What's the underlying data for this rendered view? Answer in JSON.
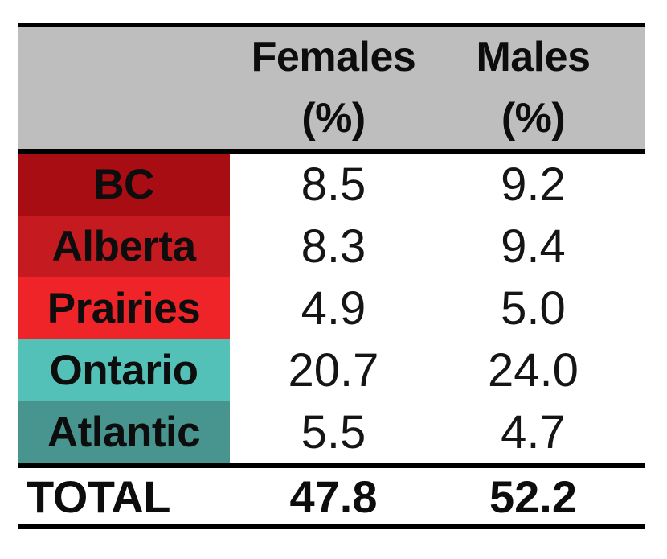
{
  "colors": {
    "header_bg": "#bfbebe",
    "rule": "#000000",
    "bc_red": "#a80d13",
    "alberta_red": "#c51a20",
    "prairies_red": "#ee2428",
    "ontario_teal": "#53c1b7",
    "atlantic_teal": "#48948e"
  },
  "header": {
    "females": {
      "title": "Females",
      "unit": "(%)"
    },
    "males": {
      "title": "Males",
      "unit": "(%)"
    }
  },
  "rows": [
    {
      "label": "BC",
      "females": "8.5",
      "males": "9.2",
      "color": "#a80d13"
    },
    {
      "label": "Alberta",
      "females": "8.3",
      "males": "9.4",
      "color": "#c51a20"
    },
    {
      "label": "Prairies",
      "females": "4.9",
      "males": "5.0",
      "color": "#ee2428"
    },
    {
      "label": "Ontario",
      "females": "20.7",
      "males": "24.0",
      "color": "#53c1b7"
    },
    {
      "label": "Atlantic",
      "females": "5.5",
      "males": "4.7",
      "color": "#48948e"
    }
  ],
  "total": {
    "label": "TOTAL",
    "females": "47.8",
    "males": "52.2"
  },
  "chart_data": {
    "type": "table",
    "columns": [
      "",
      "Females (%)",
      "Males (%)"
    ],
    "rows": [
      [
        "BC",
        8.5,
        9.2
      ],
      [
        "Alberta",
        8.3,
        9.4
      ],
      [
        "Prairies",
        4.9,
        5.0
      ],
      [
        "Ontario",
        20.7,
        24.0
      ],
      [
        "Atlantic",
        5.5,
        4.7
      ],
      [
        "TOTAL",
        47.8,
        52.2
      ]
    ],
    "notes": "Region rows shaded: reds for western provinces (BC darkest to Prairies brightest), teals for Ontario (light) and Atlantic (dark); gray column header band; bold TOTAL row set off by thick black rules"
  }
}
